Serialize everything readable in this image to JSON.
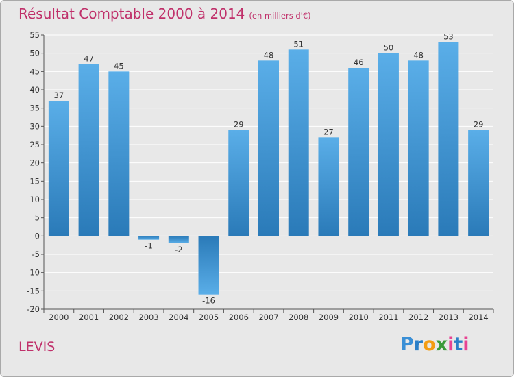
{
  "chart_data": {
    "type": "bar",
    "title": "Résultat Comptable 2000 à 2014",
    "subtitle": "(en milliers d'€)",
    "categories": [
      "2000",
      "2001",
      "2002",
      "2003",
      "2004",
      "2005",
      "2006",
      "2007",
      "2008",
      "2009",
      "2010",
      "2011",
      "2012",
      "2013",
      "2014"
    ],
    "values": [
      37,
      47,
      45,
      -1,
      -2,
      -16,
      29,
      48,
      51,
      27,
      46,
      50,
      48,
      53,
      29
    ],
    "xlabel": "",
    "ylabel": "",
    "ylim": [
      -20,
      55
    ],
    "yticks": [
      -20,
      -15,
      -10,
      -5,
      0,
      5,
      10,
      15,
      20,
      25,
      30,
      35,
      40,
      45,
      50,
      55
    ],
    "grid": true,
    "legend": "none"
  },
  "footer": {
    "place": "LEVIS",
    "logo_letters": [
      "P",
      "r",
      "o",
      "x",
      "i",
      "t",
      "i"
    ],
    "logo_colors": [
      "#3a8fd6",
      "#2a7fc8",
      "#f39c12",
      "#3a9b3a",
      "#e84393",
      "#2a7fc8",
      "#e84393"
    ]
  },
  "colors": {
    "title": "#c0306a",
    "bar_top": "#5aaee8",
    "bar_bottom": "#2a7ab8",
    "grid": "#ffffff",
    "background": "#e8e8e8"
  }
}
